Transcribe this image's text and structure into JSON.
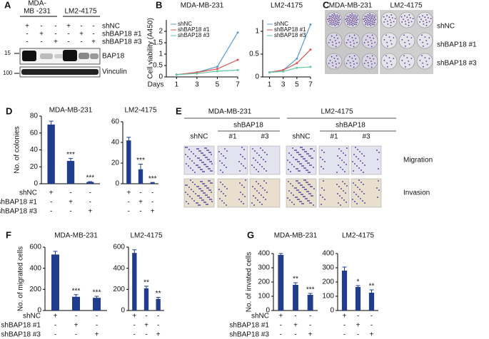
{
  "panel_letters": [
    "A",
    "B",
    "C",
    "D",
    "E",
    "F",
    "G"
  ],
  "blot": {
    "cell_line_lines": [
      [
        "MDA-",
        "MB -231"
      ],
      [
        "LM2-4175"
      ]
    ],
    "rows": [
      {
        "name": "shNC",
        "signs": [
          "+",
          "-",
          "-",
          "+",
          "-",
          "-"
        ]
      },
      {
        "name": "shBAP18 #1",
        "signs": [
          "-",
          "+",
          "-",
          "-",
          "+",
          "-"
        ]
      },
      {
        "name": "shBAP18 #3",
        "signs": [
          "-",
          "-",
          "+",
          "-",
          "-",
          "+"
        ]
      }
    ],
    "markers": [
      "15",
      "100"
    ],
    "bands": [
      "BAP18",
      "Vinculin"
    ]
  },
  "colonies": {
    "cell_lines": [
      "MDA-MB-231",
      "LM2-4175"
    ],
    "rows": [
      "shNC",
      "shBAP18 #1",
      "shBAP18 #3"
    ]
  },
  "transwell": {
    "cell_lines": [
      "MDA-MB-231",
      "LM2-4175"
    ],
    "group": "shBAP18",
    "columns": [
      "shNC",
      "#1",
      "#3",
      "shNC",
      "#1",
      "#3"
    ],
    "rows": [
      "Migration",
      "Invasion"
    ]
  },
  "chart_data": [
    {
      "type": "line",
      "title": "MDA-MB-231",
      "x_label": "Days",
      "y_label": "Cell viability (A450)",
      "x": [
        1,
        3,
        5,
        7
      ],
      "xlim": [
        0,
        7
      ],
      "xticks": [
        1,
        3,
        5,
        7
      ],
      "ylim": [
        0,
        2.5
      ],
      "yticks": [
        0,
        0.5,
        1,
        1.5,
        2
      ],
      "series": [
        {
          "name": "shNC",
          "color": "#5b9bd5",
          "values": [
            0.1,
            0.2,
            0.45,
            1.95
          ]
        },
        {
          "name": "shBAP18 #1",
          "color": "#e05050",
          "values": [
            0.1,
            0.2,
            0.35,
            0.75
          ]
        },
        {
          "name": "shBAP18 #3",
          "color": "#5fc8a0",
          "values": [
            0.1,
            0.15,
            0.25,
            0.3
          ]
        }
      ]
    },
    {
      "type": "line",
      "title": "LM2-4175",
      "x": [
        1,
        3,
        5,
        7
      ],
      "xlim": [
        0,
        7
      ],
      "xticks": [
        1,
        3,
        5,
        7
      ],
      "ylim": [
        0,
        1.25
      ],
      "yticks": [
        0,
        0.5,
        1
      ],
      "series": [
        {
          "name": "shNC",
          "color": "#5b9bd5",
          "values": [
            0.1,
            0.15,
            0.4,
            1.15
          ]
        },
        {
          "name": "shBAP18 #1",
          "color": "#e05050",
          "values": [
            0.1,
            0.15,
            0.3,
            0.6
          ]
        },
        {
          "name": "shBAP18 #3",
          "color": "#5fc8a0",
          "values": [
            0.1,
            0.12,
            0.2,
            0.22
          ]
        }
      ]
    },
    {
      "type": "bar",
      "title": "MDA-MB-231",
      "y_label": "No. of colonies",
      "color": "#1f3d8c",
      "values": [
        70,
        27,
        2
      ],
      "errors": [
        4,
        3,
        0.5
      ],
      "stars": [
        null,
        "***",
        "***"
      ],
      "ylim": [
        0,
        80
      ],
      "yticks": [
        0,
        20,
        40,
        60,
        80
      ],
      "treatment_names": [
        "shNC",
        "shBAP18 #1",
        "shBAP18 #3"
      ],
      "treatment_signs": [
        [
          "+",
          "-",
          "-"
        ],
        [
          "-",
          "+",
          "-"
        ],
        [
          "-",
          "-",
          "+"
        ]
      ]
    },
    {
      "type": "bar",
      "title": "LM2-4175",
      "color": "#1f3d8c",
      "values": [
        42,
        14,
        1
      ],
      "errors": [
        3,
        5,
        0.3
      ],
      "stars": [
        null,
        "***",
        "***"
      ],
      "ylim": [
        0,
        60
      ],
      "yticks": [
        0,
        20,
        40,
        60
      ],
      "treatment_signs": [
        [
          "+",
          "-",
          "-"
        ],
        [
          "-",
          "+",
          "-"
        ],
        [
          "-",
          "-",
          "+"
        ]
      ]
    },
    {
      "type": "bar",
      "title": "MDA-MB-231",
      "y_label": "No. of migrated cells",
      "color": "#1f3d8c",
      "values": [
        530,
        130,
        120
      ],
      "errors": [
        30,
        20,
        15
      ],
      "stars": [
        null,
        "***",
        "***"
      ],
      "ylim": [
        0,
        600
      ],
      "yticks": [
        0,
        200,
        400,
        600
      ],
      "treatment_names": [
        "shNC",
        "shBAP18 #1",
        "shBAP18 #3"
      ],
      "treatment_signs": [
        [
          "+",
          "-",
          "-"
        ],
        [
          "-",
          "+",
          "-"
        ],
        [
          "-",
          "-",
          "+"
        ]
      ]
    },
    {
      "type": "bar",
      "title": "LM2-4175",
      "color": "#1f3d8c",
      "values": [
        545,
        210,
        110
      ],
      "errors": [
        30,
        20,
        15
      ],
      "stars": [
        null,
        "**",
        "**"
      ],
      "ylim": [
        0,
        600
      ],
      "yticks": [
        0,
        200,
        400,
        600
      ],
      "treatment_signs": [
        [
          "+",
          "-",
          "-"
        ],
        [
          "-",
          "+",
          "-"
        ],
        [
          "-",
          "-",
          "+"
        ]
      ]
    },
    {
      "type": "bar",
      "title": "MDA-MB-231",
      "y_label": "No. of invated cells",
      "color": "#1f3d8c",
      "values": [
        390,
        180,
        110
      ],
      "errors": [
        10,
        15,
        10
      ],
      "stars": [
        null,
        "**",
        "***"
      ],
      "ylim": [
        0,
        400
      ],
      "yticks": [
        0,
        100,
        200,
        300,
        400
      ],
      "treatment_names": [
        "shNC",
        "shBAP18 #1",
        "shBAP18 #3"
      ],
      "treatment_signs": [
        [
          "+",
          "-",
          "-"
        ],
        [
          "-",
          "+",
          "-"
        ],
        [
          "-",
          "-",
          "+"
        ]
      ]
    },
    {
      "type": "bar",
      "title": "LM2-4175",
      "color": "#1f3d8c",
      "values": [
        280,
        165,
        125
      ],
      "errors": [
        25,
        10,
        20
      ],
      "stars": [
        null,
        "*",
        "**"
      ],
      "ylim": [
        0,
        400
      ],
      "yticks": [
        0,
        100,
        200,
        300,
        400
      ],
      "treatment_signs": [
        [
          "+",
          "-",
          "-"
        ],
        [
          "-",
          "+",
          "-"
        ],
        [
          "-",
          "-",
          "+"
        ]
      ]
    }
  ]
}
